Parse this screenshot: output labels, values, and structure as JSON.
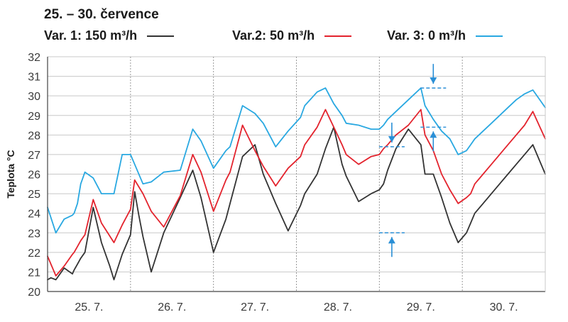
{
  "chart_data": {
    "type": "line",
    "title": "25. – 30. července",
    "ylabel": "Teplota °C",
    "xlabel": "",
    "ylim": [
      20,
      32
    ],
    "yticks": [
      20,
      21,
      22,
      23,
      24,
      25,
      26,
      27,
      28,
      29,
      30,
      31,
      32
    ],
    "xlim": [
      0,
      6
    ],
    "categories": [
      "25. 7.",
      "26. 7.",
      "27. 7.",
      "28. 7.",
      "29. 7.",
      "30. 7."
    ],
    "grid": true,
    "series": [
      {
        "name": "Var. 1: 150 m³/h",
        "color": "#333333",
        "x": [
          0,
          0.04,
          0.1,
          0.2,
          0.3,
          0.32,
          0.36,
          0.4,
          0.45,
          0.55,
          0.65,
          0.75,
          0.8,
          0.9,
          1.0,
          1.05,
          1.1,
          1.15,
          1.25,
          1.4,
          1.6,
          1.75,
          1.85,
          2.0,
          2.15,
          2.2,
          2.35,
          2.5,
          2.6,
          2.75,
          2.9,
          3.05,
          3.1,
          3.25,
          3.35,
          3.45,
          3.55,
          3.6,
          3.75,
          3.9,
          4.0,
          4.05,
          4.1,
          4.2,
          4.35,
          4.5,
          4.55,
          4.65,
          4.75,
          4.85,
          4.95,
          5.05,
          5.1,
          5.15,
          5.25,
          5.35,
          5.45,
          5.55,
          5.65,
          5.75,
          5.85,
          6.0
        ],
        "values": [
          20.6,
          20.7,
          20.6,
          21.2,
          20.9,
          21.1,
          21.4,
          21.7,
          22.0,
          24.3,
          22.5,
          21.3,
          20.6,
          21.9,
          22.9,
          25.1,
          23.9,
          22.8,
          21.0,
          23.0,
          24.8,
          26.2,
          24.8,
          22.0,
          23.7,
          24.5,
          26.9,
          27.5,
          26.0,
          24.5,
          23.1,
          24.4,
          25.0,
          26.0,
          27.3,
          28.4,
          26.5,
          25.9,
          24.6,
          25.0,
          25.2,
          25.5,
          26.2,
          27.3,
          28.3,
          27.5,
          26.0,
          26.0,
          24.8,
          23.5,
          22.5,
          23.0,
          23.5,
          24.0,
          24.5,
          25.0,
          25.5,
          26.0,
          26.5,
          27.0,
          27.5,
          26.0
        ]
      },
      {
        "name": "Var.2: 50 m³/h",
        "color": "#e3232d",
        "x": [
          0,
          0.1,
          0.2,
          0.3,
          0.32,
          0.36,
          0.4,
          0.45,
          0.55,
          0.65,
          0.8,
          0.9,
          1.0,
          1.05,
          1.15,
          1.25,
          1.4,
          1.6,
          1.75,
          1.85,
          2.0,
          2.15,
          2.2,
          2.35,
          2.5,
          2.6,
          2.75,
          2.9,
          3.05,
          3.1,
          3.25,
          3.35,
          3.45,
          3.55,
          3.6,
          3.75,
          3.9,
          4.0,
          4.05,
          4.1,
          4.2,
          4.35,
          4.5,
          4.55,
          4.65,
          4.75,
          4.85,
          4.95,
          5.05,
          5.1,
          5.15,
          5.25,
          5.35,
          5.45,
          5.55,
          5.65,
          5.75,
          5.85,
          6.0
        ],
        "values": [
          21.8,
          20.8,
          21.3,
          21.9,
          22.0,
          22.3,
          22.6,
          22.9,
          24.7,
          23.5,
          22.5,
          23.4,
          24.2,
          25.7,
          25.0,
          24.1,
          23.3,
          24.9,
          27.0,
          26.1,
          24.1,
          25.7,
          26.1,
          28.5,
          27.2,
          26.4,
          25.4,
          26.3,
          26.9,
          27.5,
          28.4,
          29.3,
          28.4,
          27.5,
          27.0,
          26.5,
          26.9,
          27.0,
          27.3,
          27.5,
          28.0,
          28.5,
          29.3,
          28.0,
          27.2,
          26.0,
          25.2,
          24.5,
          24.8,
          25.0,
          25.5,
          26.0,
          26.5,
          27.0,
          27.5,
          28.0,
          28.5,
          29.2,
          27.8
        ]
      },
      {
        "name": "Var. 3: 0 m³/h",
        "color": "#29a8e1",
        "x": [
          0,
          0.1,
          0.2,
          0.3,
          0.32,
          0.36,
          0.4,
          0.45,
          0.55,
          0.65,
          0.8,
          0.9,
          1.0,
          1.05,
          1.15,
          1.25,
          1.4,
          1.6,
          1.75,
          1.85,
          2.0,
          2.15,
          2.2,
          2.35,
          2.5,
          2.6,
          2.75,
          2.9,
          3.05,
          3.1,
          3.25,
          3.35,
          3.45,
          3.55,
          3.6,
          3.75,
          3.9,
          4.0,
          4.05,
          4.1,
          4.2,
          4.35,
          4.5,
          4.55,
          4.65,
          4.75,
          4.85,
          4.95,
          5.05,
          5.1,
          5.15,
          5.25,
          5.35,
          5.45,
          5.55,
          5.65,
          5.75,
          5.85,
          6.0
        ],
        "values": [
          24.3,
          23.0,
          23.7,
          23.9,
          24.0,
          24.5,
          25.5,
          26.1,
          25.8,
          25.0,
          25.0,
          27.0,
          27.0,
          26.5,
          25.5,
          25.6,
          26.1,
          26.2,
          28.3,
          27.7,
          26.3,
          27.2,
          27.4,
          29.5,
          29.1,
          28.6,
          27.4,
          28.2,
          28.9,
          29.5,
          30.2,
          30.4,
          29.6,
          29.0,
          28.6,
          28.5,
          28.3,
          28.3,
          28.5,
          28.8,
          29.2,
          29.8,
          30.4,
          29.5,
          28.8,
          28.2,
          27.8,
          27.0,
          27.2,
          27.5,
          27.8,
          28.2,
          28.6,
          29.0,
          29.4,
          29.8,
          30.1,
          30.3,
          29.4
        ]
      }
    ],
    "annotations": [
      {
        "label": "min-marker",
        "x": 4.15,
        "y": 23.0,
        "direction": "up"
      },
      {
        "label": "var3-min-marker",
        "x": 4.15,
        "y": 27.4,
        "direction": "down"
      },
      {
        "label": "var3-peak-marker",
        "x": 4.65,
        "y": 30.4,
        "direction": "down"
      },
      {
        "label": "var1-peak-marker",
        "x": 4.65,
        "y": 28.4,
        "direction": "up"
      }
    ]
  },
  "legend": {
    "var1": {
      "label": "Var. 1: 150 m³/h",
      "color": "#333333"
    },
    "var2": {
      "label": "Var.2: 50 m³/h",
      "color": "#e3232d"
    },
    "var3": {
      "label": "Var. 3: 0 m³/h",
      "color": "#29a8e1"
    }
  }
}
